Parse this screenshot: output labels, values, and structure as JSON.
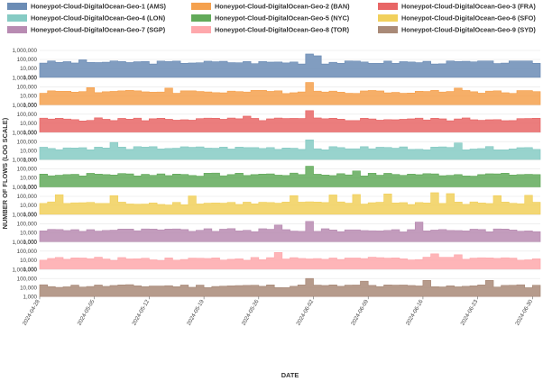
{
  "chart_data": {
    "type": "area",
    "subtype": "small-multiples step area",
    "xlabel": "DATE",
    "ylabel": "NUMBER OF FLOWS (LOG SCALE)",
    "y_scale": "log",
    "ylim": [
      1000,
      1000000
    ],
    "y_ticks": [
      {
        "value": 1000,
        "label": "1,000"
      },
      {
        "value": 10000,
        "label": "10,000"
      },
      {
        "value": 100000,
        "label": "100,000"
      },
      {
        "value": 1000000,
        "label": "1,000,000"
      }
    ],
    "x_range": [
      "2024-04-28",
      "2024-07-01"
    ],
    "x_ticks": [
      "2024-04-28",
      "2024-05-05",
      "2024-05-12",
      "2024-05-19",
      "2024-05-26",
      "2024-06-02",
      "2024-06-09",
      "2024-06-16",
      "2024-06-23",
      "2024-06-30"
    ],
    "grid": true,
    "legend": "top",
    "series": [
      {
        "name": "Honeypot-Cloud-DigitalOcean-Geo-1 (AMS)",
        "color": "#6b8cb5",
        "baseline": 50000,
        "spikes": {
          "2024-06-01": 400000,
          "2024-06-02": 250000,
          "2024-05-03": 90000
        }
      },
      {
        "name": "Honeypot-Cloud-DigitalOcean-Geo-2 (BAN)",
        "color": "#f5a14e",
        "baseline": 30000,
        "spikes": {
          "2024-06-01": 300000,
          "2024-05-04": 80000,
          "2024-05-14": 70000,
          "2024-06-20": 70000
        }
      },
      {
        "name": "Honeypot-Cloud-DigitalOcean-Geo-3 (FRA)",
        "color": "#e86666",
        "baseline": 28000,
        "spikes": {
          "2024-06-01": 250000,
          "2024-05-24": 60000
        }
      },
      {
        "name": "Honeypot-Cloud-DigitalOcean-Geo-4 (LON)",
        "color": "#86cbc4",
        "baseline": 20000,
        "spikes": {
          "2024-05-07": 80000,
          "2024-06-01": 150000,
          "2024-06-20": 70000
        }
      },
      {
        "name": "Honeypot-Cloud-DigitalOcean-Geo-5 (NYC)",
        "color": "#62aa5a",
        "baseline": 25000,
        "spikes": {
          "2024-06-01": 200000,
          "2024-06-07": 60000
        }
      },
      {
        "name": "Honeypot-Cloud-DigitalOcean-Geo-6 (SFO)",
        "color": "#f1d05c",
        "baseline": 18000,
        "spikes": {
          "2024-04-30": 150000,
          "2024-05-07": 120000,
          "2024-05-17": 110000,
          "2024-05-30": 120000,
          "2024-06-04": 140000,
          "2024-06-07": 160000,
          "2024-06-11": 180000,
          "2024-06-17": 250000,
          "2024-06-19": 200000,
          "2024-06-25": 120000,
          "2024-06-29": 130000
        }
      },
      {
        "name": "Honeypot-Cloud-DigitalOcean-Geo-7 (SGP)",
        "color": "#b88bb2",
        "baseline": 20000,
        "spikes": {
          "2024-06-01": 180000,
          "2024-06-15": 150000,
          "2024-05-28": 70000
        }
      },
      {
        "name": "Honeypot-Cloud-DigitalOcean-Geo-8 (TOR)",
        "color": "#fea8ac",
        "baseline": 15000,
        "spikes": {
          "2024-05-28": 70000,
          "2024-06-17": 50000,
          "2024-06-20": 40000
        }
      },
      {
        "name": "Honeypot-Cloud-DigitalOcean-Geo-9 (SYD)",
        "color": "#a98a78",
        "baseline": 15000,
        "spikes": {
          "2024-06-01": 100000,
          "2024-06-08": 50000,
          "2024-06-16": 60000,
          "2024-06-24": 60000
        }
      }
    ]
  }
}
